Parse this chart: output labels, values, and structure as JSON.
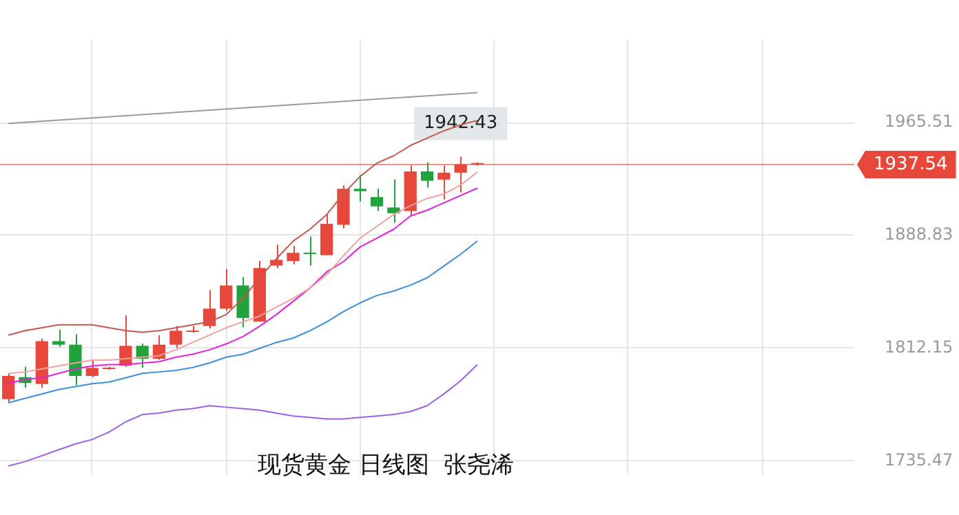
{
  "chart_data": {
    "type": "candlestick",
    "title": "现货黄金 日线图  张尧浠",
    "categories": [
      null,
      null,
      null,
      null,
      null,
      null,
      null,
      null,
      null,
      null,
      null,
      null,
      null,
      null,
      null,
      null,
      null,
      null,
      null,
      null,
      null,
      null,
      null,
      null,
      null,
      null,
      null,
      null,
      null
    ],
    "ohlc": [
      [
        1777.4,
        1795.0,
        1775.0,
        1793.2
      ],
      [
        1792.4,
        1799.5,
        1785.3,
        1788.4
      ],
      [
        1787.7,
        1818.5,
        1785.3,
        1816.9
      ],
      [
        1816.9,
        1824.8,
        1813.0,
        1814.5
      ],
      [
        1814.5,
        1821.6,
        1786.9,
        1793.2
      ],
      [
        1793.2,
        1804.3,
        1792.4,
        1798.7
      ],
      [
        1797.9,
        1799.5,
        1797.5,
        1798.7
      ],
      [
        1800.3,
        1834.3,
        1799.5,
        1813.7
      ],
      [
        1813.7,
        1815.3,
        1798.7,
        1805.0
      ],
      [
        1805.0,
        1820.9,
        1804.3,
        1814.5
      ],
      [
        1814.5,
        1827.2,
        1812.2,
        1824.0
      ],
      [
        1823.2,
        1827.2,
        1822.5,
        1824.0
      ],
      [
        1827.2,
        1851.7,
        1825.6,
        1839.0
      ],
      [
        1839.0,
        1865.9,
        1837.5,
        1854.8
      ],
      [
        1854.8,
        1860.4,
        1826.4,
        1832.7
      ],
      [
        1830.3,
        1871.4,
        1830.3,
        1866.7
      ],
      [
        1868.3,
        1882.5,
        1866.7,
        1872.2
      ],
      [
        1871.4,
        1881.7,
        1869.1,
        1877.0
      ],
      [
        1877.0,
        1888.1,
        1868.3,
        1876.2
      ],
      [
        1875.4,
        1903.1,
        1875.4,
        1896.7
      ],
      [
        1896.0,
        1922.8,
        1893.6,
        1920.5
      ],
      [
        1920.5,
        1929.9,
        1911.8,
        1918.9
      ],
      [
        1914.9,
        1920.5,
        1905.4,
        1908.6
      ],
      [
        1907.8,
        1926.8,
        1897.5,
        1903.9
      ],
      [
        1905.4,
        1936.3,
        1902.3,
        1932.3
      ],
      [
        1932.3,
        1938.6,
        1921.3,
        1926.0
      ],
      [
        1926.8,
        1936.3,
        1913.3,
        1931.5
      ],
      [
        1931.5,
        1942.43,
        1918.1,
        1937.1
      ],
      [
        1937.1,
        1938.6,
        1936.3,
        1937.54
      ]
    ],
    "colors": [
      "#e8473b",
      "#1fa33a",
      "#e8473b",
      "#1fa33a",
      "#1fa33a",
      "#e8473b",
      "#e8473b",
      "#e8473b",
      "#1fa33a",
      "#e8473b",
      "#e8473b",
      "#e8473b",
      "#e8473b",
      "#e8473b",
      "#1fa33a",
      "#e8473b",
      "#e8473b",
      "#e8473b",
      "#1fa33a",
      "#e8473b",
      "#e8473b",
      "#1fa33a",
      "#1fa33a",
      "#1fa33a",
      "#e8473b",
      "#1fa33a",
      "#e8473b",
      "#e8473b",
      "#e8473b"
    ],
    "series": [
      {
        "type": "line",
        "color": "#c9584c",
        "values": [
          1821,
          1824,
          1826,
          1828,
          1828,
          1828,
          1826,
          1824,
          1823,
          1824,
          1826,
          1828,
          1830,
          1835,
          1846,
          1860,
          1873,
          1885,
          1893,
          1903,
          1917,
          1929,
          1938,
          1943,
          1950,
          1955,
          1960,
          1964,
          1967
        ]
      },
      {
        "type": "line",
        "color": "#f2a3a0",
        "values": [
          1795,
          1796,
          1798,
          1800,
          1802,
          1804,
          1804,
          1805,
          1806,
          1807,
          1811,
          1816,
          1821,
          1826,
          1830,
          1834,
          1840,
          1846,
          1853,
          1862,
          1875,
          1887,
          1895,
          1903,
          1909,
          1914,
          1917,
          1923,
          1932
        ]
      },
      {
        "type": "line",
        "color": "#e61fe0",
        "values": [
          1788,
          1791,
          1792,
          1795,
          1798,
          1800,
          1801,
          1801,
          1802,
          1803,
          1806,
          1808,
          1811,
          1815,
          1820,
          1827,
          1835,
          1844,
          1853,
          1864,
          1871,
          1881,
          1887,
          1893,
          1902,
          1906,
          1911,
          1916,
          1921
        ]
      },
      {
        "type": "line",
        "color": "#3b8fe3",
        "values": [
          1775,
          1778,
          1781,
          1784,
          1786,
          1788,
          1789,
          1792,
          1795,
          1796,
          1797,
          1799,
          1802,
          1806,
          1808,
          1812,
          1816,
          1819,
          1824,
          1830,
          1837,
          1843,
          1848,
          1851,
          1855,
          1860,
          1868,
          1876,
          1885
        ]
      },
      {
        "type": "line",
        "color": "#9b62e8",
        "values": [
          1732,
          1735,
          1739,
          1743,
          1747,
          1750,
          1755,
          1762,
          1767,
          1768,
          1770,
          1771,
          1773,
          1772,
          1771,
          1770,
          1768,
          1766,
          1765,
          1764,
          1764,
          1765,
          1766,
          1767,
          1769,
          1773,
          1781,
          1790,
          1801
        ]
      },
      {
        "type": "line",
        "color": "#9a9a9a",
        "values": [
          1965,
          null,
          null,
          null,
          null,
          null,
          null,
          null,
          null,
          null,
          null,
          null,
          null,
          null,
          null,
          null,
          null,
          null,
          null,
          null,
          null,
          null,
          null,
          null,
          null,
          null,
          null,
          null,
          1986
        ]
      }
    ],
    "ylim": [
      1726.0,
      2021.6
    ],
    "yticks": [
      1735.47,
      1812.15,
      1888.83,
      1965.51
    ],
    "ref_lines": [
      {
        "axis": "y",
        "value": 1937.54,
        "label": "1937.54",
        "color": "#e8473b"
      }
    ],
    "annotations": [
      "1942.43"
    ],
    "grid": true,
    "legend": false,
    "tick_labels": "y",
    "marker": "none"
  }
}
